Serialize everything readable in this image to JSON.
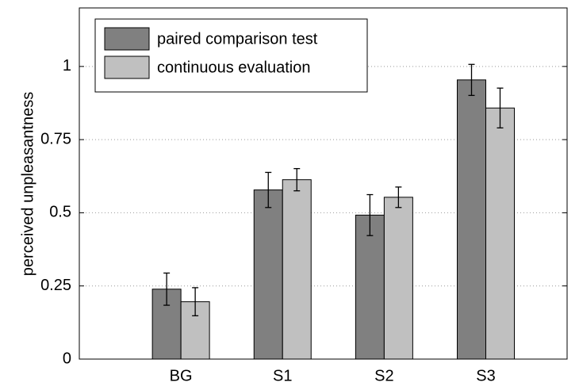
{
  "chart_data": {
    "type": "bar",
    "y_label": "perceived unpleasantness",
    "categories": [
      "BG",
      "S1",
      "S2",
      "S3"
    ],
    "series": [
      {
        "name": "paired comparison test",
        "color": "#808080",
        "values": [
          0.239,
          0.578,
          0.492,
          0.954
        ],
        "errors": [
          0.055,
          0.06,
          0.07,
          0.053
        ]
      },
      {
        "name": "continuous evaluation",
        "color": "#c0c0c0",
        "values": [
          0.196,
          0.613,
          0.553,
          0.858
        ],
        "errors": [
          0.048,
          0.038,
          0.035,
          0.068
        ]
      }
    ],
    "ylim": [
      0,
      1.2
    ],
    "yticks": [
      0,
      0.25,
      0.5,
      0.75,
      1
    ],
    "grid": true,
    "legend": "upper left"
  }
}
